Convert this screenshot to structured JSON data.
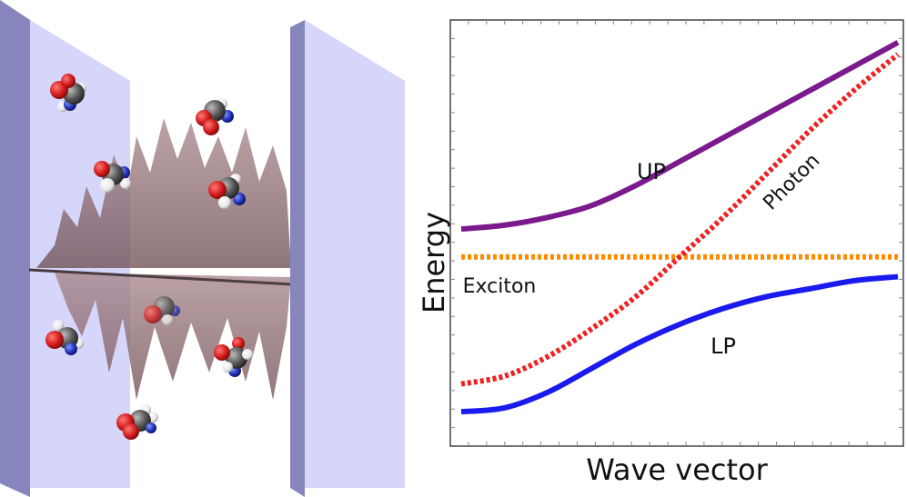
{
  "chart_data": {
    "type": "line",
    "xlabel": "Wave vector",
    "ylabel": "Energy",
    "xlim": [
      0,
      1
    ],
    "ylim": [
      0,
      1
    ],
    "grid": false,
    "legend": "none",
    "series": [
      {
        "key": "up",
        "name": "UP",
        "color": "#7a1a8c",
        "style": "solid",
        "x": [
          0,
          0.1,
          0.2,
          0.3,
          0.4,
          0.5,
          0.6,
          0.7,
          0.8,
          0.9,
          1.0
        ],
        "y": [
          0.51,
          0.52,
          0.54,
          0.57,
          0.62,
          0.68,
          0.74,
          0.8,
          0.86,
          0.92,
          0.98
        ]
      },
      {
        "key": "photon",
        "name": "Photon",
        "color": "#ee2222",
        "style": "dotted",
        "x": [
          0,
          0.1,
          0.2,
          0.3,
          0.4,
          0.5,
          0.6,
          0.7,
          0.8,
          0.9,
          1.0
        ],
        "y": [
          0.12,
          0.14,
          0.19,
          0.26,
          0.34,
          0.44,
          0.54,
          0.65,
          0.76,
          0.86,
          0.95
        ]
      },
      {
        "key": "exciton",
        "name": "Exciton",
        "color": "#ff8c00",
        "style": "dotted",
        "x": [
          0,
          1.0
        ],
        "y": [
          0.44,
          0.44
        ]
      },
      {
        "key": "lp",
        "name": "LP",
        "color": "#1a1aee",
        "style": "solid",
        "x": [
          0,
          0.1,
          0.2,
          0.3,
          0.4,
          0.5,
          0.6,
          0.7,
          0.8,
          0.9,
          1.0
        ],
        "y": [
          0.05,
          0.06,
          0.1,
          0.16,
          0.22,
          0.27,
          0.31,
          0.34,
          0.36,
          0.38,
          0.39
        ]
      }
    ]
  },
  "illustration": {
    "subject": "optical-cavity-with-molecules",
    "mirror_color": "#d6d6fb",
    "mirror_side_color": "#8686bc",
    "wave_color": "#8e6a6e",
    "molecule_atom_colors": {
      "oxygen": "#d41c1c",
      "carbon": "#555555",
      "nitrogen": "#2233bb",
      "hydrogen": "#f2f2f2"
    },
    "molecule_count": 10
  }
}
